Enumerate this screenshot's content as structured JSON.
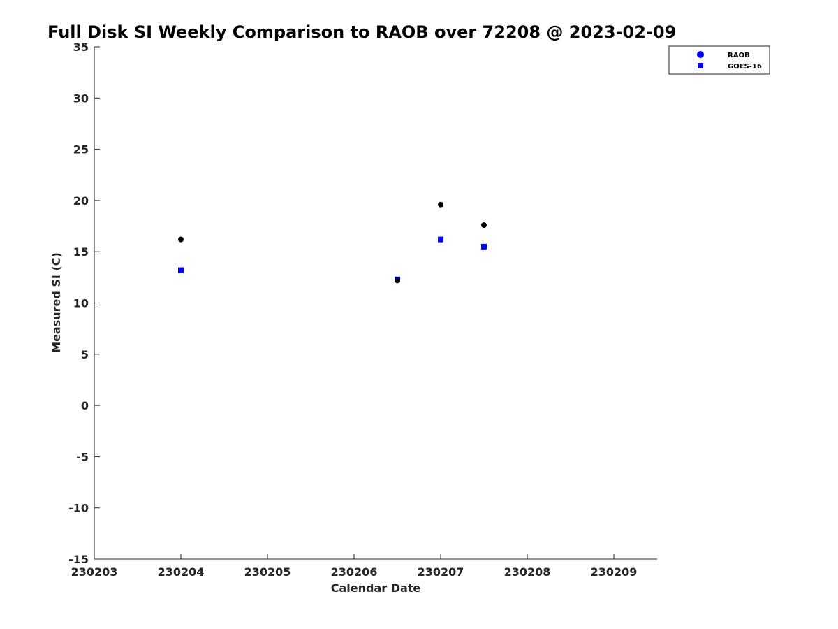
{
  "chart_data": {
    "type": "scatter",
    "title": "Full Disk SI Weekly Comparison to RAOB over 72208 @ 2023-02-09",
    "xlabel": "Calendar Date",
    "ylabel": "Measured SI (C)",
    "xlim": [
      230203,
      230209.5
    ],
    "ylim": [
      -15,
      35
    ],
    "x_ticks": [
      230203,
      230204,
      230205,
      230206,
      230207,
      230208,
      230209
    ],
    "x_tick_labels": [
      "230203",
      "230204",
      "230205",
      "230206",
      "230207",
      "230208",
      "230209"
    ],
    "y_ticks": [
      -15,
      -10,
      -5,
      0,
      5,
      10,
      15,
      20,
      25,
      30,
      35
    ],
    "y_tick_labels": [
      "-15",
      "-10",
      "-5",
      "0",
      "5",
      "10",
      "15",
      "20",
      "25",
      "30",
      "35"
    ],
    "grid": false,
    "legend_position": "top-right",
    "series": [
      {
        "name": "RAOB",
        "marker": "circle",
        "legend_color": "#0000ff",
        "point_color": "#000000",
        "x": [
          230204,
          230206.5,
          230207,
          230207.5
        ],
        "y": [
          16.2,
          12.2,
          19.6,
          17.6
        ]
      },
      {
        "name": "GOES-16",
        "marker": "square",
        "legend_color": "#0000ff",
        "point_color": "#0000ff",
        "x": [
          230204,
          230206.5,
          230207,
          230207.5
        ],
        "y": [
          13.2,
          12.3,
          16.2,
          15.5
        ]
      }
    ]
  }
}
